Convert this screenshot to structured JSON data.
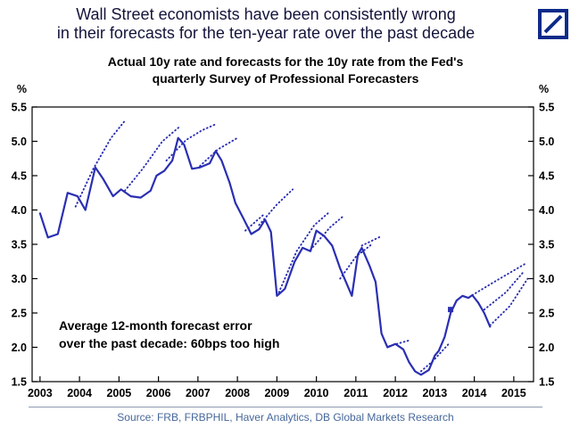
{
  "header": {
    "title_line1": "Wall Street economists have been consistently wrong",
    "title_line2": "in their forecasts for the ten-year rate over the past decade"
  },
  "logo": {
    "name": "deutsche-bank-logo",
    "color": "#0C2A8A"
  },
  "chart_data": {
    "type": "line",
    "title_line1": "Actual 10y rate and forecasts for the 10y rate from the Fed's",
    "title_line2": "quarterly Survey of Professional Forecasters",
    "ylabel_left": "%",
    "ylabel_right": "%",
    "ylim": [
      1.5,
      5.5
    ],
    "xlim": [
      2002.8,
      2015.5
    ],
    "yticks": [
      1.5,
      2.0,
      2.5,
      3.0,
      3.5,
      4.0,
      4.5,
      5.0,
      5.5
    ],
    "xticks": [
      2003,
      2004,
      2005,
      2006,
      2007,
      2008,
      2009,
      2010,
      2011,
      2012,
      2013,
      2014,
      2015
    ],
    "grid": false,
    "legend": "none",
    "line_color": "#2a2fb2",
    "annotation_line1": "Average 12-month forecast error",
    "annotation_line2": "over the past decade: 60bps too high",
    "marker": {
      "x": 2013.4,
      "y": 2.55,
      "shape": "square"
    },
    "series": [
      {
        "name": "Actual 10y rate",
        "style": "solid",
        "points": [
          [
            2003.0,
            3.95
          ],
          [
            2003.2,
            3.6
          ],
          [
            2003.45,
            3.65
          ],
          [
            2003.7,
            4.25
          ],
          [
            2003.95,
            4.2
          ],
          [
            2004.15,
            4.0
          ],
          [
            2004.4,
            4.62
          ],
          [
            2004.6,
            4.45
          ],
          [
            2004.85,
            4.2
          ],
          [
            2005.05,
            4.3
          ],
          [
            2005.3,
            4.2
          ],
          [
            2005.55,
            4.18
          ],
          [
            2005.8,
            4.28
          ],
          [
            2005.95,
            4.5
          ],
          [
            2006.15,
            4.57
          ],
          [
            2006.35,
            4.72
          ],
          [
            2006.5,
            5.05
          ],
          [
            2006.65,
            4.95
          ],
          [
            2006.85,
            4.6
          ],
          [
            2007.05,
            4.62
          ],
          [
            2007.3,
            4.68
          ],
          [
            2007.45,
            4.86
          ],
          [
            2007.6,
            4.72
          ],
          [
            2007.8,
            4.4
          ],
          [
            2007.95,
            4.1
          ],
          [
            2008.15,
            3.88
          ],
          [
            2008.35,
            3.65
          ],
          [
            2008.55,
            3.72
          ],
          [
            2008.7,
            3.86
          ],
          [
            2008.85,
            3.68
          ],
          [
            2009.0,
            2.75
          ],
          [
            2009.2,
            2.85
          ],
          [
            2009.45,
            3.25
          ],
          [
            2009.65,
            3.45
          ],
          [
            2009.85,
            3.4
          ],
          [
            2010.0,
            3.7
          ],
          [
            2010.2,
            3.62
          ],
          [
            2010.4,
            3.48
          ],
          [
            2010.6,
            3.15
          ],
          [
            2010.75,
            2.95
          ],
          [
            2010.9,
            2.75
          ],
          [
            2011.05,
            3.35
          ],
          [
            2011.15,
            3.45
          ],
          [
            2011.35,
            3.18
          ],
          [
            2011.5,
            2.95
          ],
          [
            2011.65,
            2.2
          ],
          [
            2011.8,
            2.0
          ],
          [
            2012.0,
            2.05
          ],
          [
            2012.2,
            1.97
          ],
          [
            2012.35,
            1.78
          ],
          [
            2012.5,
            1.65
          ],
          [
            2012.65,
            1.6
          ],
          [
            2012.85,
            1.67
          ],
          [
            2013.0,
            1.88
          ],
          [
            2013.1,
            1.95
          ],
          [
            2013.25,
            2.15
          ],
          [
            2013.4,
            2.5
          ],
          [
            2013.55,
            2.68
          ],
          [
            2013.7,
            2.75
          ],
          [
            2013.85,
            2.72
          ],
          [
            2013.95,
            2.76
          ],
          [
            2014.1,
            2.65
          ],
          [
            2014.25,
            2.5
          ],
          [
            2014.4,
            2.3
          ]
        ]
      },
      {
        "name": "SPF quarterly forecasts for the 10y rate",
        "style": "dotted",
        "segments": [
          [
            [
              2003.9,
              4.05
            ],
            [
              2004.35,
              4.6
            ],
            [
              2004.8,
              5.05
            ],
            [
              2005.15,
              5.3
            ]
          ],
          [
            [
              2005.15,
              4.28
            ],
            [
              2005.6,
              4.6
            ],
            [
              2006.1,
              5.0
            ],
            [
              2006.55,
              5.22
            ]
          ],
          [
            [
              2006.2,
              4.72
            ],
            [
              2006.7,
              5.02
            ],
            [
              2007.1,
              5.16
            ],
            [
              2007.45,
              5.25
            ]
          ],
          [
            [
              2007.05,
              4.64
            ],
            [
              2007.5,
              4.88
            ],
            [
              2008.0,
              5.05
            ]
          ],
          [
            [
              2008.2,
              3.7
            ],
            [
              2008.7,
              3.95
            ]
          ],
          [
            [
              2008.55,
              3.78
            ],
            [
              2009.0,
              4.08
            ],
            [
              2009.4,
              4.3
            ]
          ],
          [
            [
              2009.05,
              2.8
            ],
            [
              2009.5,
              3.4
            ],
            [
              2009.95,
              3.78
            ],
            [
              2010.35,
              3.98
            ]
          ],
          [
            [
              2009.85,
              3.42
            ],
            [
              2010.35,
              3.75
            ],
            [
              2010.7,
              3.92
            ]
          ],
          [
            [
              2010.6,
              3.0
            ],
            [
              2011.0,
              3.32
            ],
            [
              2011.4,
              3.5
            ]
          ],
          [
            [
              2011.15,
              3.48
            ],
            [
              2011.65,
              3.62
            ]
          ],
          [
            [
              2011.85,
              2.02
            ],
            [
              2012.35,
              2.1
            ]
          ],
          [
            [
              2012.65,
              1.65
            ],
            [
              2012.95,
              1.8
            ],
            [
              2013.35,
              2.05
            ]
          ],
          [
            [
              2013.95,
              2.76
            ],
            [
              2014.5,
              2.95
            ],
            [
              2015.0,
              3.12
            ],
            [
              2015.3,
              3.22
            ]
          ],
          [
            [
              2014.25,
              2.55
            ],
            [
              2014.8,
              2.8
            ],
            [
              2015.25,
              3.1
            ]
          ],
          [
            [
              2014.4,
              2.32
            ],
            [
              2014.9,
              2.6
            ],
            [
              2015.35,
              3.0
            ]
          ]
        ]
      }
    ]
  },
  "footer": {
    "source": "Source: FRB, FRBPHIL, Haver Analytics, DB Global Markets Research"
  }
}
